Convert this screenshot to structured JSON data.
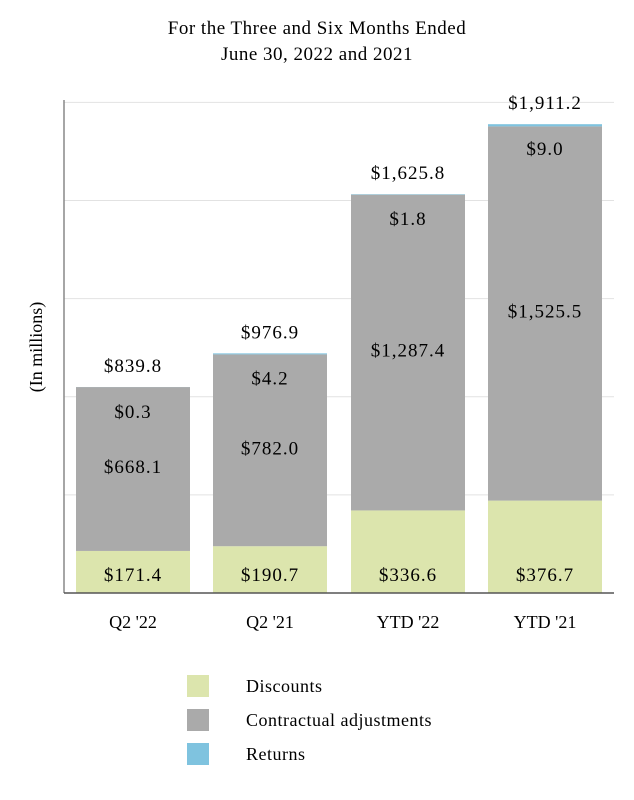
{
  "chart_data": {
    "type": "bar",
    "stacked": true,
    "title": [
      "For the Three and Six Months Ended",
      "June 30, 2022 and 2021"
    ],
    "ylabel": "(In millions)",
    "xlabel": "",
    "categories": [
      "Q2 '22",
      "Q2 '21",
      "YTD '22",
      "YTD '21"
    ],
    "ylim": [
      0,
      2000
    ],
    "grid": true,
    "legend_position": "bottom",
    "series": [
      {
        "name": "Discounts",
        "color": "#dce5ad",
        "values": [
          171.4,
          190.7,
          336.6,
          376.7
        ],
        "labels": [
          "$171.4",
          "$190.7",
          "$336.6",
          "$376.7"
        ]
      },
      {
        "name": "Contractual adjustments",
        "color": "#aaaaaa",
        "values": [
          668.1,
          782.0,
          1287.4,
          1525.5
        ],
        "labels": [
          "$668.1",
          "$782.0",
          "$1,287.4",
          "$1,525.5"
        ]
      },
      {
        "name": "Returns",
        "color": "#7fc3df",
        "values": [
          0.3,
          4.2,
          1.8,
          9.0
        ],
        "labels": [
          "$0.3",
          "$4.2",
          "$1.8",
          "$9.0"
        ]
      }
    ],
    "totals": [
      839.8,
      976.9,
      1625.8,
      1911.2
    ],
    "total_labels": [
      "$839.8",
      "$976.9",
      "$1,625.8",
      "$1,911.2"
    ]
  }
}
